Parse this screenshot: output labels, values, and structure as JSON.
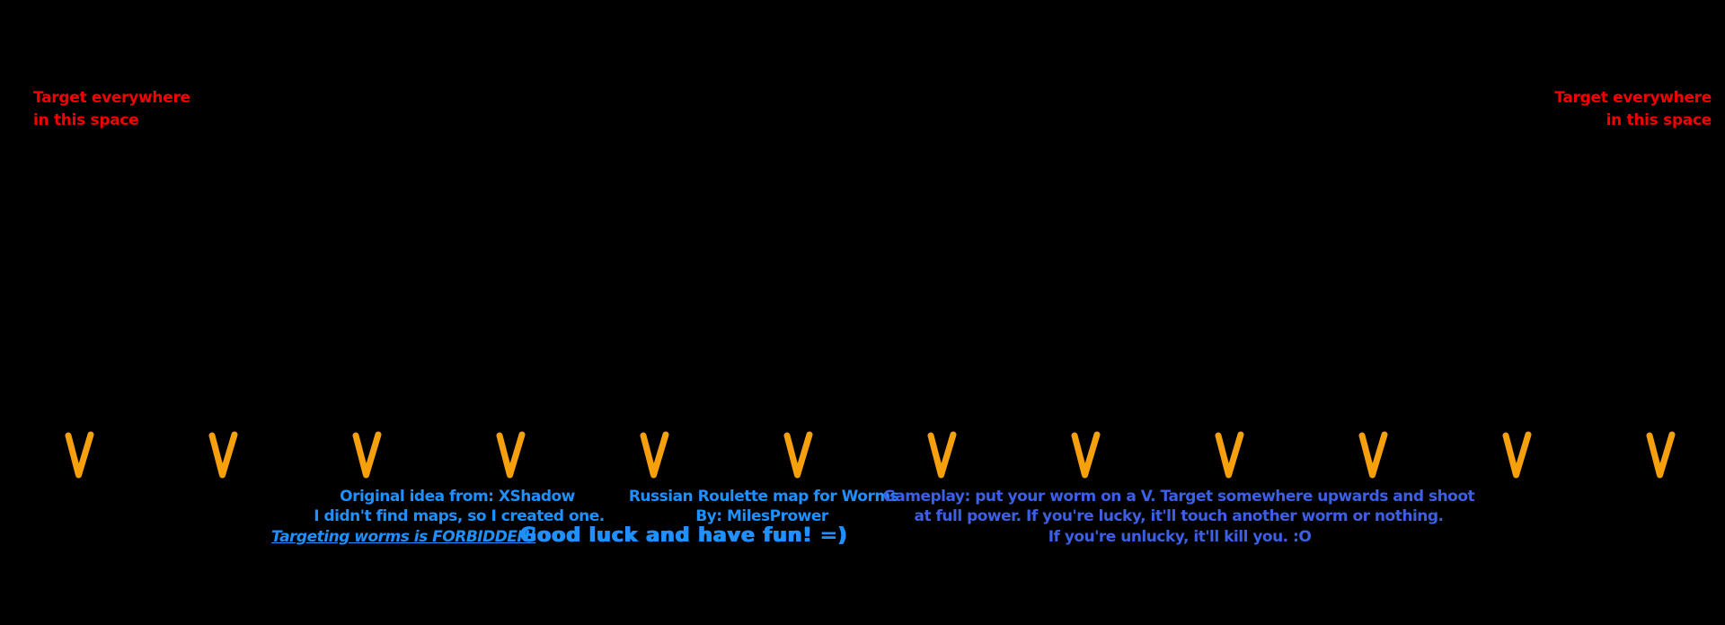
{
  "map": {
    "colors": {
      "background": "#000000",
      "red_note": "#f40000",
      "credit_blue": "#1e90ff",
      "gameplay_blue": "#3c5fe6",
      "v_orange": "#f6a00d"
    },
    "target_note_left": {
      "line1": "Target everywhere",
      "line2": "in this space"
    },
    "target_note_right": {
      "line1": "Target everywhere",
      "line2": "in this space"
    },
    "v_row": {
      "glyph": "V",
      "count": 12,
      "centers": [
        88,
        248,
        408,
        568,
        728,
        888,
        1048,
        1208,
        1368,
        1528,
        1688,
        1848
      ]
    },
    "credits": {
      "origin_line1": "Original idea from: XShadow",
      "origin_line2": "I didn't find maps, so I created one.",
      "forbidden": "Targeting worms is FORBIDDEN!",
      "good_luck": "Good luck and have fun! =)",
      "title_line1": "Russian Roulette map for Worms",
      "title_line2": "By: MilesPrower",
      "gameplay_line1": "Gameplay: put your worm on a V. Target somewhere upwards and shoot",
      "gameplay_line2": "at full power. If you're lucky, it'll touch another worm or nothing.",
      "gameplay_line3": "If you're unlucky, it'll kill you. :O"
    }
  }
}
